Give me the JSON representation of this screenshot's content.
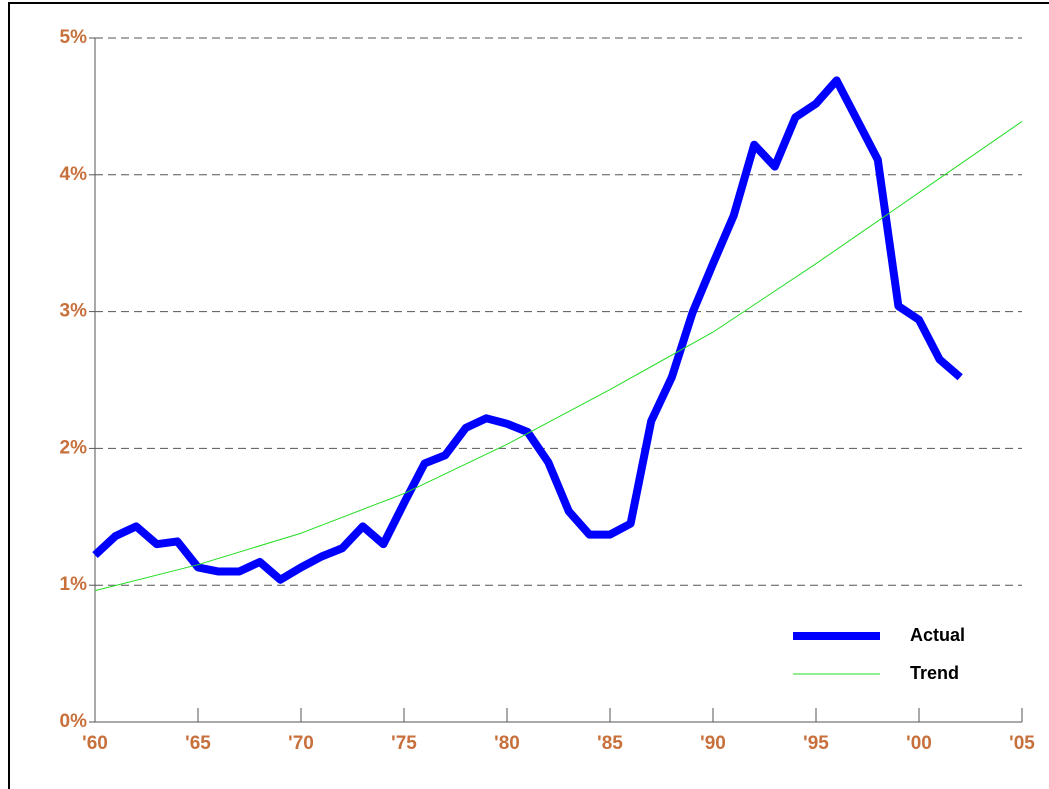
{
  "chart_data": {
    "type": "line",
    "series": [
      {
        "name": "Actual",
        "color": "#0000ff",
        "width": 8,
        "x": [
          1960,
          1961,
          1962,
          1963,
          1964,
          1965,
          1966,
          1967,
          1968,
          1969,
          1970,
          1971,
          1972,
          1973,
          1974,
          1975,
          1976,
          1977,
          1978,
          1979,
          1980,
          1981,
          1982,
          1983,
          1984,
          1985,
          1986,
          1987,
          1988,
          1989,
          1990,
          1991,
          1992,
          1993,
          1994,
          1995,
          1996,
          1997,
          1998,
          1999,
          2000,
          2001,
          2002
        ],
        "values": [
          1.22,
          1.36,
          1.43,
          1.3,
          1.32,
          1.13,
          1.1,
          1.1,
          1.17,
          1.04,
          1.13,
          1.21,
          1.27,
          1.43,
          1.3,
          1.6,
          1.89,
          1.95,
          2.15,
          2.22,
          2.18,
          2.12,
          1.9,
          1.54,
          1.37,
          1.37,
          1.45,
          2.2,
          2.52,
          2.99,
          3.35,
          3.7,
          4.22,
          4.06,
          4.42,
          4.52,
          4.69,
          4.4,
          4.11,
          3.04,
          2.94,
          2.65,
          2.52
        ]
      },
      {
        "name": "Trend",
        "color": "#22dd22",
        "width": 1,
        "x": [
          1960,
          1965,
          1970,
          1975,
          1980,
          1985,
          1990,
          1995,
          2000,
          2005
        ],
        "values": [
          0.96,
          1.15,
          1.38,
          1.67,
          2.03,
          2.43,
          2.85,
          3.35,
          3.87,
          4.39
        ]
      }
    ],
    "xlim": [
      1960,
      2005
    ],
    "xticks": [
      {
        "value": 1960,
        "label": "'60"
      },
      {
        "value": 1965,
        "label": "'65"
      },
      {
        "value": 1970,
        "label": "'70"
      },
      {
        "value": 1975,
        "label": "'75"
      },
      {
        "value": 1980,
        "label": "'80"
      },
      {
        "value": 1985,
        "label": "'85"
      },
      {
        "value": 1990,
        "label": "'90"
      },
      {
        "value": 1995,
        "label": "'95"
      },
      {
        "value": 2000,
        "label": "'00"
      },
      {
        "value": 2005,
        "label": "'05"
      }
    ],
    "ylim": [
      0,
      5
    ],
    "yticks": [
      {
        "value": 0,
        "label": "0%"
      },
      {
        "value": 1,
        "label": "1%"
      },
      {
        "value": 2,
        "label": "2%"
      },
      {
        "value": 3,
        "label": "3%"
      },
      {
        "value": 4,
        "label": "4%"
      },
      {
        "value": 5,
        "label": "5%"
      }
    ],
    "grid": true,
    "legend": "lower right"
  }
}
